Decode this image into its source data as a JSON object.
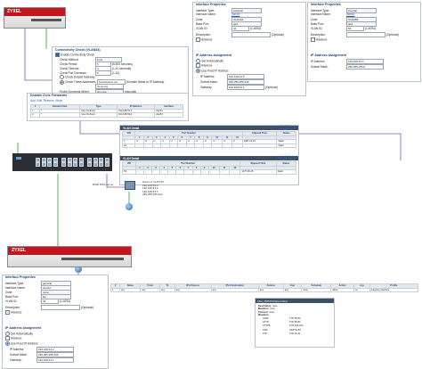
{
  "top_left_device": {
    "brand": "ZYXEL",
    "model": "USG"
  },
  "bottom_left_device": {
    "brand": "ZYXEL",
    "model": "USG"
  },
  "connectivity": {
    "title": "Connectivity Check (VLAN44)",
    "enable_label": "Enable Connectivity Check",
    "method_label": "Check Method:",
    "method_value": "icmp",
    "period_label": "Check Period:",
    "period_value": "5",
    "period_unit": "(5-600 seconds)",
    "timeout_label": "Check Timeout:",
    "timeout_value": "2",
    "timeout_unit": "(1-10 seconds)",
    "fail_label": "Check Fail Tolerance:",
    "fail_value": "5",
    "fail_unit": "(1-10)",
    "default_gw_label": "Check Default Gateway",
    "these_label": "Check These Addresses",
    "these_value_1": "boundsomic.net",
    "these_value_2": "ho-tp.org",
    "these_hint": "(Domain Name or IP Address)",
    "probe_label": "Probe Succeeds When:",
    "probe_value": "any one",
    "probe_suffix": "responds"
  },
  "ddns": {
    "title": "Domain Zone Forwarder",
    "toolbar": [
      "Add",
      "Edit",
      "Remove",
      "Move"
    ],
    "columns": [
      "#",
      "Domain Zone",
      "Type",
      "IP Address",
      "Interface"
    ],
    "rows": [
      {
        "n": "1",
        "zone": "*",
        "type": "User Defined",
        "ip": "192.168.51.3",
        "iface": "vlan51"
      },
      {
        "n": "2",
        "zone": "*",
        "type": "User Defined",
        "ip": "192.168.53.4",
        "iface": "vlan53"
      }
    ]
  },
  "iface_top_mid": {
    "title": "Interface Properties",
    "type_label": "Interface Type:",
    "type_value": "external",
    "name_label": "Interface Name:",
    "name_value": "vlan44",
    "zone_label": "Zone:",
    "zone_value": "VLAN44",
    "base_label": "Base Port:",
    "base_value": "ge3",
    "vid_label": "VLAN ID:",
    "vid_value": "44",
    "vid_range": "(1-4094)",
    "desc_label": "Description:",
    "desc_hint": "(Optional)",
    "advance_label": "Advance",
    "ip_title": "IP Address Assignment",
    "auto_label": "Get Automatically",
    "advance2_label": "Advance",
    "fixed_label": "Use Fixed IP Address",
    "ip_label": "IP Address:",
    "ip_value": "192.168.44.5",
    "mask_label": "Subnet Mask:",
    "mask_value": "255.255.255.240",
    "gw_label": "Gateway:",
    "gw_value": "192.168.44.1",
    "gw_hint": "(Optional)"
  },
  "iface_top_right": {
    "title": "Interface Properties",
    "type_label": "Interface Type:",
    "type_value": "internal",
    "name_label": "Interface Name:",
    "name_value": "vlan53",
    "zone_label": "Zone:",
    "zone_value": "VLAN53",
    "base_label": "Base Port:",
    "base_value": "ge3",
    "vid_label": "VLAN ID:",
    "vid_value": "53",
    "vid_range": "(1-4094)",
    "desc_label": "Description:",
    "desc_hint": "(Optional)",
    "advance_label": "Advance",
    "ip_title": "IP Address Assignment",
    "ip_label": "IP Address:",
    "ip_value": "192.168.53.3",
    "mask_label": "Subnet Mask:",
    "mask_value": "255.255.255.0"
  },
  "vlan_panel": {
    "title_1": "VLAN Detail",
    "status_link_1": "VLAN Status",
    "title_2": "VLAN Detail",
    "status_link_2": "VLAN Status",
    "port_number": "Port Number",
    "vid_head": "VID",
    "elapsed_head": "Elapsed Time",
    "status_head": "Status",
    "ports": [
      "1",
      "2",
      "3",
      "4",
      "5",
      "6",
      "7",
      "8",
      "9",
      "10",
      "11",
      "12"
    ],
    "row1": {
      "vid": "1",
      "cells": [
        "U",
        "U",
        "U",
        "U",
        "U",
        "U",
        "U",
        "U",
        "U",
        "U",
        "U",
        "U"
      ],
      "elapsed": "1587:12:16",
      "status": "Static"
    },
    "row2": {
      "vid": "44",
      "cells": [
        "-",
        "-",
        "-",
        "-",
        "-",
        "-",
        "-",
        "-",
        "-",
        "-",
        "-",
        "-"
      ],
      "elapsed": "",
      "status": "Static"
    },
    "row3": {
      "vid": "53",
      "cells": [
        "-",
        "-",
        "-",
        "-",
        "-",
        "-",
        "-",
        "-",
        "-",
        "-",
        "-",
        "-"
      ],
      "elapsed": "1277:36:15",
      "status": "Static"
    }
  },
  "network": {
    "ddns_server_label": "BIND DNS server",
    "hyper_v_label": "Hyper-V VLAN 53",
    "hyper_v_ips": [
      "192.168.53.3",
      "192.168.53.2",
      "192.168.53.1",
      "255.255.255.224"
    ]
  },
  "iface_bottom_left": {
    "title": "Interface Properties",
    "type_label": "Interface Type:",
    "type_value": "general",
    "name_label": "Interface Name:",
    "name_value": "vlan44",
    "zone_label": "Zone:",
    "zone_value": "none",
    "base_label": "Base Port:",
    "base_value": "lan",
    "vid_label": "VLAN ID:",
    "vid_value": "44",
    "vid_range": "(1-4094)",
    "desc_label": "Description:",
    "desc_hint": "(Optional)",
    "advance_label": "Advance",
    "ip_title": "IP Address Assignment",
    "auto_label": "Get Automatically",
    "advance2_label": "Advance",
    "fixed_label": "Use Fixed IP Address",
    "ip_label": "IP Address:",
    "ip_value": "192.168.44.2",
    "mask_label": "Subnet Mask:",
    "mask_value": "255.255.255.240",
    "gw_label": "Gateway:",
    "gw_value": "192.168.44.1"
  },
  "policy": {
    "columns": [
      "#",
      "Name",
      "From",
      "To",
      "IPv4 Source",
      "IPv4 Destination",
      "Service",
      "User",
      "Schedule",
      "Action",
      "Log",
      "Profile"
    ],
    "row": {
      "n": "1",
      "name": "any",
      "from": "any",
      "to": "any",
      "src": "any",
      "dst": "any",
      "service": "any",
      "user": "any",
      "schedule": "none",
      "action": "allow",
      "log": "no",
      "profile": "outgoing interface"
    }
  },
  "object": {
    "title": "SSH_4545 PCPolicy Filters",
    "sub1": "Description:",
    "sub1_v": "none",
    "sub2": "Members:",
    "sub2_v": "none",
    "sub3": "Protocol:",
    "sub3_v": "none",
    "sub4": "Members:",
    "items": [
      {
        "name": "ICMP",
        "val": "TCP 80-80"
      },
      {
        "name": "HTTP",
        "val": "TCP 80-80"
      },
      {
        "name": "HTTPS",
        "val": "TCP 443-443"
      },
      {
        "name": "DNS",
        "val": "UDP 53-53"
      },
      {
        "name": "FTP",
        "val": "TCP 20-21"
      }
    ]
  },
  "colors": {
    "brand_red": "#c4141c",
    "link_blue": "#2a5fa8",
    "line_purple": "#8a4fb0",
    "line_green": "#2a9a3a"
  }
}
